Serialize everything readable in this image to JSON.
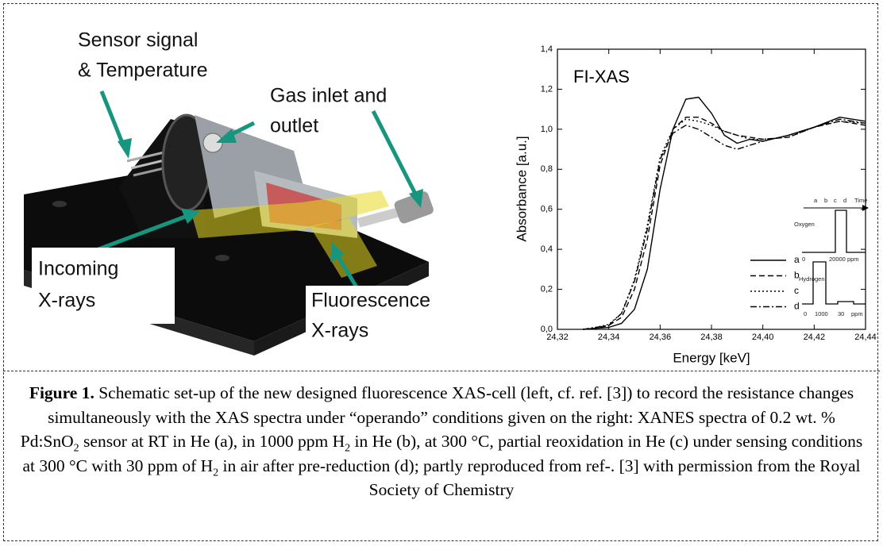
{
  "schematic": {
    "labels": [
      {
        "lines": [
          "Sensor signal",
          "& Temperature"
        ]
      },
      {
        "lines": [
          "Gas inlet and",
          "outlet"
        ]
      },
      {
        "lines": [
          "Incoming",
          "X-rays"
        ]
      },
      {
        "lines": [
          "Fluorescence",
          "X-rays"
        ]
      }
    ]
  },
  "chart_data": {
    "type": "line",
    "annotation": "FI-XAS",
    "x_label": "Energy [keV]",
    "y_label": "Absorbance [a.u.]",
    "x": [
      24.33,
      24.335,
      24.34,
      24.345,
      24.35,
      24.355,
      24.36,
      24.365,
      24.37,
      24.375,
      24.38,
      24.385,
      24.39,
      24.395,
      24.4,
      24.41,
      24.42,
      24.43,
      24.44
    ],
    "series": [
      {
        "name": "a",
        "color": "#000000",
        "dash": "solid",
        "values": [
          0,
          0.005,
          0.01,
          0.03,
          0.1,
          0.3,
          0.7,
          1.0,
          1.15,
          1.16,
          1.08,
          0.97,
          0.93,
          0.95,
          0.94,
          0.97,
          1.01,
          1.06,
          1.04
        ]
      },
      {
        "name": "b",
        "color": "#000000",
        "dash": "dashed",
        "values": [
          0,
          0.005,
          0.02,
          0.06,
          0.2,
          0.45,
          0.82,
          1.0,
          1.06,
          1.06,
          1.03,
          0.99,
          0.97,
          0.96,
          0.95,
          0.96,
          1.01,
          1.04,
          1.02
        ]
      },
      {
        "name": "c",
        "color": "#000000",
        "dash": "dotted",
        "values": [
          0,
          0.01,
          0.025,
          0.08,
          0.25,
          0.52,
          0.86,
          1.0,
          1.05,
          1.04,
          1.02,
          0.99,
          0.97,
          0.95,
          0.95,
          0.96,
          1.01,
          1.04,
          1.03
        ]
      },
      {
        "name": "d",
        "color": "#000000",
        "dash": "dashdot",
        "values": [
          0,
          0.01,
          0.02,
          0.08,
          0.24,
          0.5,
          0.85,
          0.98,
          1.02,
          1.0,
          0.96,
          0.92,
          0.9,
          0.92,
          0.94,
          0.97,
          1.01,
          1.05,
          1.03
        ]
      }
    ],
    "xlim": [
      24.32,
      24.44
    ],
    "xticks": [
      {
        "value": 24.32,
        "label": "24,32"
      },
      {
        "value": 24.34,
        "label": "24,34"
      },
      {
        "value": 24.36,
        "label": "24,36"
      },
      {
        "value": 24.38,
        "label": "24,38"
      },
      {
        "value": 24.4,
        "label": "24,40"
      },
      {
        "value": 24.42,
        "label": "24,42"
      },
      {
        "value": 24.44,
        "label": "24,44"
      }
    ],
    "ylim": [
      0,
      1.4
    ],
    "yticks": [
      {
        "value": 0,
        "label": "0,0"
      },
      {
        "value": 0.2,
        "label": "0,2"
      },
      {
        "value": 0.4,
        "label": "0,4"
      },
      {
        "value": 0.6,
        "label": "0,6"
      },
      {
        "value": 0.8,
        "label": "0,8"
      },
      {
        "value": 1.0,
        "label": "1,0"
      },
      {
        "value": 1.2,
        "label": "1,2"
      },
      {
        "value": 1.4,
        "label": "1,4"
      }
    ],
    "grid": false,
    "legend": "lower right",
    "inset": {
      "time_labels": [
        "a",
        "b",
        "c",
        "d",
        "Time"
      ],
      "oxygen": "Oxygen",
      "oxygen_ticks": [
        "0",
        "20000 ppm"
      ],
      "hydrogen": "Hydrogen",
      "hydrogen_ticks": [
        "0",
        "1000",
        "30",
        "ppm"
      ]
    }
  },
  "caption": {
    "label": "Figure 1.",
    "runs": [
      " Schematic set-up of the new designed fluorescence XAS-cell (left, cf. ref. [3]) to record the resistance changes simultaneously with the XAS spectra under “operando” conditions given on the right: XANES spectra of 0.2 wt. % Pd:SnO",
      "2",
      " sensor at RT in He (a), in 1000 ppm H",
      "2",
      " in He (b), at 300 °C, partial reoxidation in He (c) under sensing conditions at 300 °C with 30 ppm of H",
      "2",
      " in air after pre-reduction (d); partly reproduced from ref-. [3] with permission from the Royal Society of Chemistry"
    ]
  }
}
